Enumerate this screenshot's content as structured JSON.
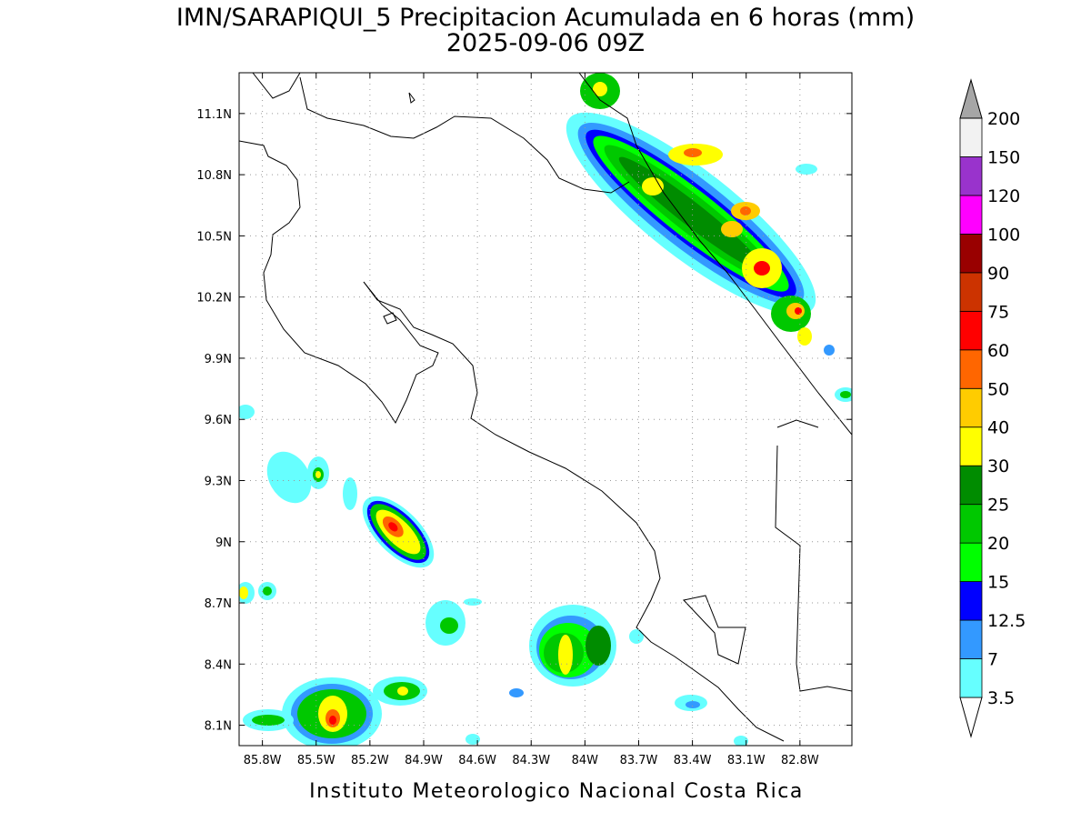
{
  "map": {
    "title": "IMN/SARAPIQUI_5 Precipitacion Acumulada en 6 horas (mm)",
    "subtitle": "2025-09-06 09Z",
    "footer": "Instituto Meteorologico Nacional Costa Rica",
    "xlim": [
      -85.93,
      -82.51
    ],
    "ylim": [
      8.0,
      11.3
    ],
    "grid": true,
    "xticks": [
      {
        "value": -85.8,
        "label": "85.8W"
      },
      {
        "value": -85.5,
        "label": "85.5W"
      },
      {
        "value": -85.2,
        "label": "85.2W"
      },
      {
        "value": -84.9,
        "label": "84.9W"
      },
      {
        "value": -84.6,
        "label": "84.6W"
      },
      {
        "value": -84.3,
        "label": "84.3W"
      },
      {
        "value": -84.0,
        "label": "84W"
      },
      {
        "value": -83.7,
        "label": "83.7W"
      },
      {
        "value": -83.4,
        "label": "83.4W"
      },
      {
        "value": -83.1,
        "label": "83.1W"
      },
      {
        "value": -82.8,
        "label": "82.8W"
      }
    ],
    "yticks": [
      {
        "value": 8.1,
        "label": "8.1N"
      },
      {
        "value": 8.4,
        "label": "8.4N"
      },
      {
        "value": 8.7,
        "label": "8.7N"
      },
      {
        "value": 9.0,
        "label": "9N"
      },
      {
        "value": 9.3,
        "label": "9.3N"
      },
      {
        "value": 9.6,
        "label": "9.6N"
      },
      {
        "value": 9.9,
        "label": "9.9N"
      },
      {
        "value": 10.2,
        "label": "10.2N"
      },
      {
        "value": 10.5,
        "label": "10.5N"
      },
      {
        "value": 10.8,
        "label": "10.8N"
      },
      {
        "value": 11.1,
        "label": "11.1N"
      }
    ],
    "colorbar": {
      "levels": [
        3.5,
        7,
        12.5,
        15,
        20,
        25,
        30,
        40,
        50,
        60,
        75,
        90,
        100,
        120,
        150,
        200
      ],
      "colors": [
        "#ffffff",
        "#66ffff",
        "#3399ff",
        "#0000ff",
        "#00ff00",
        "#00c800",
        "#008c00",
        "#ffff00",
        "#ffcc00",
        "#ff6600",
        "#ff0000",
        "#cc3300",
        "#990000",
        "#ff00ff",
        "#9933cc",
        "#f2f2f2",
        "#a6a6a6"
      ]
    }
  }
}
